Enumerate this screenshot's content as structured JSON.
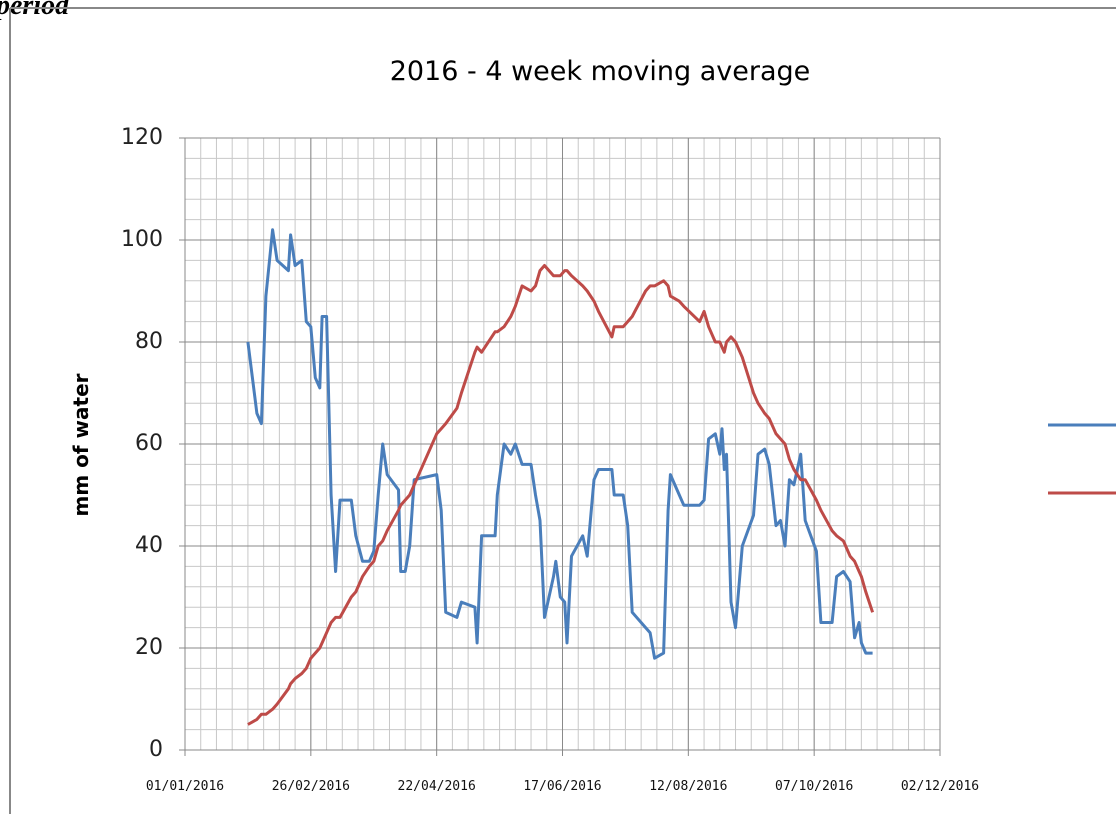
{
  "caption": "period",
  "chart_data": {
    "type": "line",
    "title": "2016 - 4 week moving average",
    "y_label": "mm of water",
    "x": [
      "2016-01-29",
      "2016-02-02",
      "2016-02-04",
      "2016-02-06",
      "2016-02-09",
      "2016-02-11",
      "2016-02-16",
      "2016-02-17",
      "2016-02-19",
      "2016-02-22",
      "2016-02-24",
      "2016-02-26",
      "2016-02-28",
      "2016-03-01",
      "2016-03-02",
      "2016-03-04",
      "2016-03-06",
      "2016-03-08",
      "2016-03-10",
      "2016-03-15",
      "2016-03-17",
      "2016-03-20",
      "2016-03-23",
      "2016-03-25",
      "2016-03-27",
      "2016-03-29",
      "2016-03-31",
      "2016-04-05",
      "2016-04-06",
      "2016-04-08",
      "2016-04-10",
      "2016-04-12",
      "2016-04-22",
      "2016-04-24",
      "2016-04-26",
      "2016-05-01",
      "2016-05-03",
      "2016-05-09",
      "2016-05-10",
      "2016-05-12",
      "2016-05-18",
      "2016-05-19",
      "2016-05-22",
      "2016-05-25",
      "2016-05-27",
      "2016-05-30",
      "2016-06-03",
      "2016-06-05",
      "2016-06-07",
      "2016-06-09",
      "2016-06-13",
      "2016-06-14",
      "2016-06-16",
      "2016-06-18",
      "2016-06-19",
      "2016-06-21",
      "2016-06-26",
      "2016-06-28",
      "2016-07-01",
      "2016-07-03",
      "2016-07-09",
      "2016-07-10",
      "2016-07-14",
      "2016-07-16",
      "2016-07-18",
      "2016-07-24",
      "2016-07-26",
      "2016-07-28",
      "2016-08-01",
      "2016-08-03",
      "2016-08-04",
      "2016-08-08",
      "2016-08-10",
      "2016-08-17",
      "2016-08-19",
      "2016-08-21",
      "2016-08-24",
      "2016-08-26",
      "2016-08-27",
      "2016-08-28",
      "2016-08-29",
      "2016-08-31",
      "2016-09-02",
      "2016-09-05",
      "2016-09-10",
      "2016-09-12",
      "2016-09-15",
      "2016-09-17",
      "2016-09-20",
      "2016-09-22",
      "2016-09-24",
      "2016-09-26",
      "2016-09-28",
      "2016-10-01",
      "2016-10-03",
      "2016-10-08",
      "2016-10-10",
      "2016-10-15",
      "2016-10-17",
      "2016-10-20",
      "2016-10-23",
      "2016-10-25",
      "2016-10-27",
      "2016-10-28",
      "2016-10-30",
      "2016-11-02"
    ],
    "series": [
      {
        "color": "#4a7ebb",
        "values": [
          80,
          66,
          64,
          89,
          102,
          96,
          94,
          101,
          95,
          96,
          84,
          83,
          73,
          71,
          85,
          85,
          50,
          35,
          49,
          49,
          42,
          37,
          37,
          39,
          50,
          60,
          54,
          51,
          35,
          35,
          40,
          53,
          54,
          47,
          27,
          26,
          29,
          28,
          21,
          42,
          42,
          50,
          60,
          58,
          60,
          56,
          56,
          50,
          45,
          26,
          34,
          37,
          30,
          29,
          21,
          38,
          42,
          38,
          53,
          55,
          55,
          50,
          50,
          44,
          27,
          24,
          23,
          18,
          19,
          47,
          54,
          50,
          48,
          48,
          49,
          61,
          62,
          58,
          63,
          55,
          58,
          29,
          24,
          40,
          46,
          58,
          59,
          56,
          44,
          45,
          40,
          53,
          52,
          58,
          45,
          39,
          25,
          25,
          34,
          35,
          33,
          22,
          25,
          21,
          19,
          19
        ]
      },
      {
        "color": "#be4b48",
        "values": [
          5,
          6,
          7,
          7,
          8,
          9,
          12,
          13,
          14,
          15,
          16,
          18,
          19,
          20,
          21,
          23,
          25,
          26,
          26,
          30,
          31,
          34,
          36,
          37,
          40,
          41,
          43,
          47,
          48,
          49,
          50,
          52,
          62,
          63,
          64,
          67,
          70,
          78,
          79,
          78,
          82,
          82,
          83,
          85,
          87,
          91,
          90,
          91,
          94,
          95,
          93,
          93,
          93,
          94,
          94,
          93,
          91,
          90,
          88,
          86,
          81,
          83,
          83,
          84,
          85,
          90,
          91,
          91,
          92,
          91,
          89,
          88,
          87,
          84,
          86,
          83,
          80,
          80,
          79,
          78,
          80,
          81,
          80,
          77,
          70,
          68,
          66,
          65,
          62,
          61,
          60,
          57,
          55,
          53,
          53,
          49,
          47,
          43,
          42,
          41,
          38,
          37,
          35,
          34,
          31,
          27
        ]
      }
    ],
    "xlim": [
      "2016-01-01",
      "2016-12-02"
    ],
    "xticks": [
      {
        "value": "2016-01-01",
        "label": "01/01/2016"
      },
      {
        "value": "2016-02-26",
        "label": "26/02/2016"
      },
      {
        "value": "2016-04-22",
        "label": "22/04/2016"
      },
      {
        "value": "2016-06-17",
        "label": "17/06/2016"
      },
      {
        "value": "2016-08-12",
        "label": "12/08/2016"
      },
      {
        "value": "2016-10-07",
        "label": "07/10/2016"
      },
      {
        "value": "2016-12-02",
        "label": "02/12/2016"
      }
    ],
    "ylim": [
      0,
      120
    ],
    "yticks": [
      0,
      20,
      40,
      60,
      80,
      100,
      120
    ],
    "grid": true,
    "minor_grid": true,
    "legend": "right"
  }
}
